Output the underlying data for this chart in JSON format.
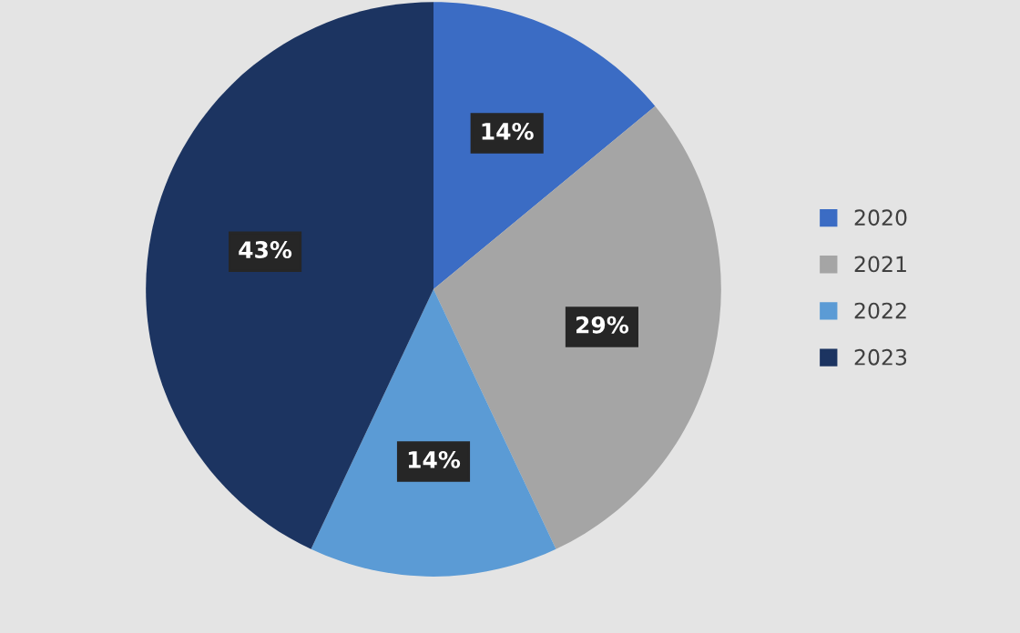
{
  "chart_data": {
    "type": "pie",
    "categories": [
      "2020",
      "2021",
      "2022",
      "2023"
    ],
    "values": [
      14,
      29,
      14,
      43
    ],
    "colors": [
      "#3b6cc4",
      "#a5a5a5",
      "#5b9bd5",
      "#1c3461"
    ],
    "value_labels": [
      "14%",
      "29%",
      "14%",
      "43%"
    ],
    "legend": "right"
  }
}
